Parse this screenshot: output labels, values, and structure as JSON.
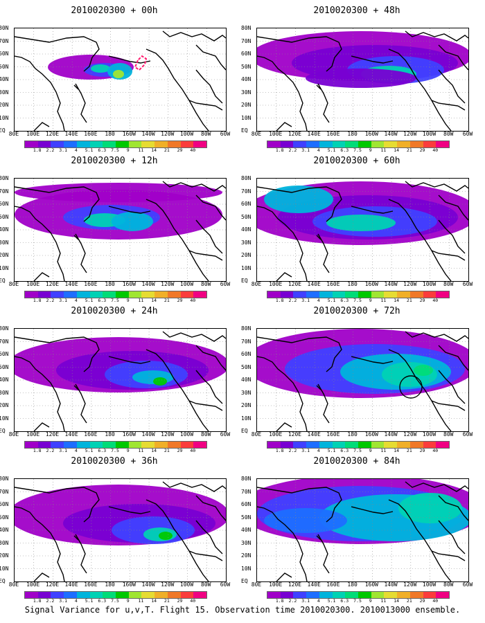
{
  "panels": [
    {
      "title": "2010020300 + 00h"
    },
    {
      "title": "2010020300 + 48h"
    },
    {
      "title": "2010020300 + 12h"
    },
    {
      "title": "2010020300 + 60h"
    },
    {
      "title": "2010020300 + 24h"
    },
    {
      "title": "2010020300 + 72h"
    },
    {
      "title": "2010020300 + 36h"
    },
    {
      "title": "2010020300 + 84h"
    }
  ],
  "axes": {
    "lat_labels": [
      "80N",
      "70N",
      "60N",
      "50N",
      "40N",
      "30N",
      "20N",
      "10N",
      "EQ"
    ],
    "lon_labels": [
      "80E",
      "100E",
      "120E",
      "140E",
      "160E",
      "180",
      "160W",
      "140W",
      "120W",
      "100W",
      "80W",
      "60W"
    ]
  },
  "colorbar": {
    "labels": [
      "1.8",
      "2.2",
      "3.1",
      "4",
      "5.1",
      "6.3",
      "7.5",
      "9",
      "11",
      "14",
      "21",
      "29",
      "40"
    ],
    "colors": [
      "#a000c8",
      "#7800d2",
      "#4040ff",
      "#1e6eff",
      "#00b4dc",
      "#00d2b4",
      "#00dc78",
      "#00c800",
      "#a0e632",
      "#e6dc32",
      "#f0af28",
      "#f07828",
      "#fa3c3c",
      "#f00082"
    ]
  },
  "caption": "Signal Variance for u,v,T. Flight 15. Observation time 2010020300. 2010013000 ensemble."
}
